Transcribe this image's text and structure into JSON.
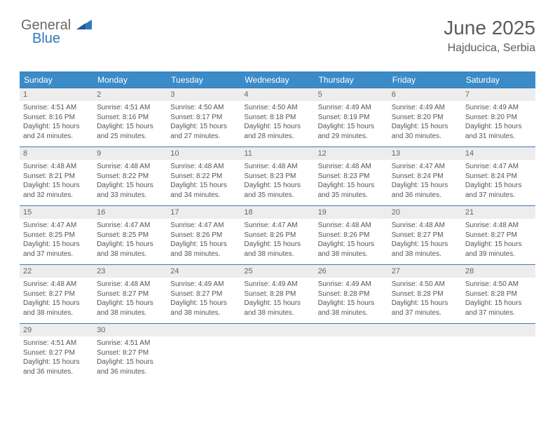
{
  "logo": {
    "word1": "General",
    "word2": "Blue"
  },
  "title": "June 2025",
  "location": "Hajducica, Serbia",
  "colors": {
    "header_bg": "#3b8bc8",
    "header_text": "#ffffff",
    "border": "#3a7ab8",
    "daynum_bg": "#ededed",
    "text": "#555555",
    "logo_gray": "#6a6a6a",
    "logo_blue": "#2f78bd"
  },
  "day_labels": [
    "Sunday",
    "Monday",
    "Tuesday",
    "Wednesday",
    "Thursday",
    "Friday",
    "Saturday"
  ],
  "weeks": [
    [
      {
        "n": "1",
        "sunrise": "4:51 AM",
        "sunset": "8:16 PM",
        "daylight": "15 hours and 24 minutes."
      },
      {
        "n": "2",
        "sunrise": "4:51 AM",
        "sunset": "8:16 PM",
        "daylight": "15 hours and 25 minutes."
      },
      {
        "n": "3",
        "sunrise": "4:50 AM",
        "sunset": "8:17 PM",
        "daylight": "15 hours and 27 minutes."
      },
      {
        "n": "4",
        "sunrise": "4:50 AM",
        "sunset": "8:18 PM",
        "daylight": "15 hours and 28 minutes."
      },
      {
        "n": "5",
        "sunrise": "4:49 AM",
        "sunset": "8:19 PM",
        "daylight": "15 hours and 29 minutes."
      },
      {
        "n": "6",
        "sunrise": "4:49 AM",
        "sunset": "8:20 PM",
        "daylight": "15 hours and 30 minutes."
      },
      {
        "n": "7",
        "sunrise": "4:49 AM",
        "sunset": "8:20 PM",
        "daylight": "15 hours and 31 minutes."
      }
    ],
    [
      {
        "n": "8",
        "sunrise": "4:48 AM",
        "sunset": "8:21 PM",
        "daylight": "15 hours and 32 minutes."
      },
      {
        "n": "9",
        "sunrise": "4:48 AM",
        "sunset": "8:22 PM",
        "daylight": "15 hours and 33 minutes."
      },
      {
        "n": "10",
        "sunrise": "4:48 AM",
        "sunset": "8:22 PM",
        "daylight": "15 hours and 34 minutes."
      },
      {
        "n": "11",
        "sunrise": "4:48 AM",
        "sunset": "8:23 PM",
        "daylight": "15 hours and 35 minutes."
      },
      {
        "n": "12",
        "sunrise": "4:48 AM",
        "sunset": "8:23 PM",
        "daylight": "15 hours and 35 minutes."
      },
      {
        "n": "13",
        "sunrise": "4:47 AM",
        "sunset": "8:24 PM",
        "daylight": "15 hours and 36 minutes."
      },
      {
        "n": "14",
        "sunrise": "4:47 AM",
        "sunset": "8:24 PM",
        "daylight": "15 hours and 37 minutes."
      }
    ],
    [
      {
        "n": "15",
        "sunrise": "4:47 AM",
        "sunset": "8:25 PM",
        "daylight": "15 hours and 37 minutes."
      },
      {
        "n": "16",
        "sunrise": "4:47 AM",
        "sunset": "8:25 PM",
        "daylight": "15 hours and 38 minutes."
      },
      {
        "n": "17",
        "sunrise": "4:47 AM",
        "sunset": "8:26 PM",
        "daylight": "15 hours and 38 minutes."
      },
      {
        "n": "18",
        "sunrise": "4:47 AM",
        "sunset": "8:26 PM",
        "daylight": "15 hours and 38 minutes."
      },
      {
        "n": "19",
        "sunrise": "4:48 AM",
        "sunset": "8:26 PM",
        "daylight": "15 hours and 38 minutes."
      },
      {
        "n": "20",
        "sunrise": "4:48 AM",
        "sunset": "8:27 PM",
        "daylight": "15 hours and 38 minutes."
      },
      {
        "n": "21",
        "sunrise": "4:48 AM",
        "sunset": "8:27 PM",
        "daylight": "15 hours and 39 minutes."
      }
    ],
    [
      {
        "n": "22",
        "sunrise": "4:48 AM",
        "sunset": "8:27 PM",
        "daylight": "15 hours and 38 minutes."
      },
      {
        "n": "23",
        "sunrise": "4:48 AM",
        "sunset": "8:27 PM",
        "daylight": "15 hours and 38 minutes."
      },
      {
        "n": "24",
        "sunrise": "4:49 AM",
        "sunset": "8:27 PM",
        "daylight": "15 hours and 38 minutes."
      },
      {
        "n": "25",
        "sunrise": "4:49 AM",
        "sunset": "8:28 PM",
        "daylight": "15 hours and 38 minutes."
      },
      {
        "n": "26",
        "sunrise": "4:49 AM",
        "sunset": "8:28 PM",
        "daylight": "15 hours and 38 minutes."
      },
      {
        "n": "27",
        "sunrise": "4:50 AM",
        "sunset": "8:28 PM",
        "daylight": "15 hours and 37 minutes."
      },
      {
        "n": "28",
        "sunrise": "4:50 AM",
        "sunset": "8:28 PM",
        "daylight": "15 hours and 37 minutes."
      }
    ],
    [
      {
        "n": "29",
        "sunrise": "4:51 AM",
        "sunset": "8:27 PM",
        "daylight": "15 hours and 36 minutes."
      },
      {
        "n": "30",
        "sunrise": "4:51 AM",
        "sunset": "8:27 PM",
        "daylight": "15 hours and 36 minutes."
      },
      null,
      null,
      null,
      null,
      null
    ]
  ],
  "labels": {
    "sunrise": "Sunrise:",
    "sunset": "Sunset:",
    "daylight": "Daylight:"
  }
}
